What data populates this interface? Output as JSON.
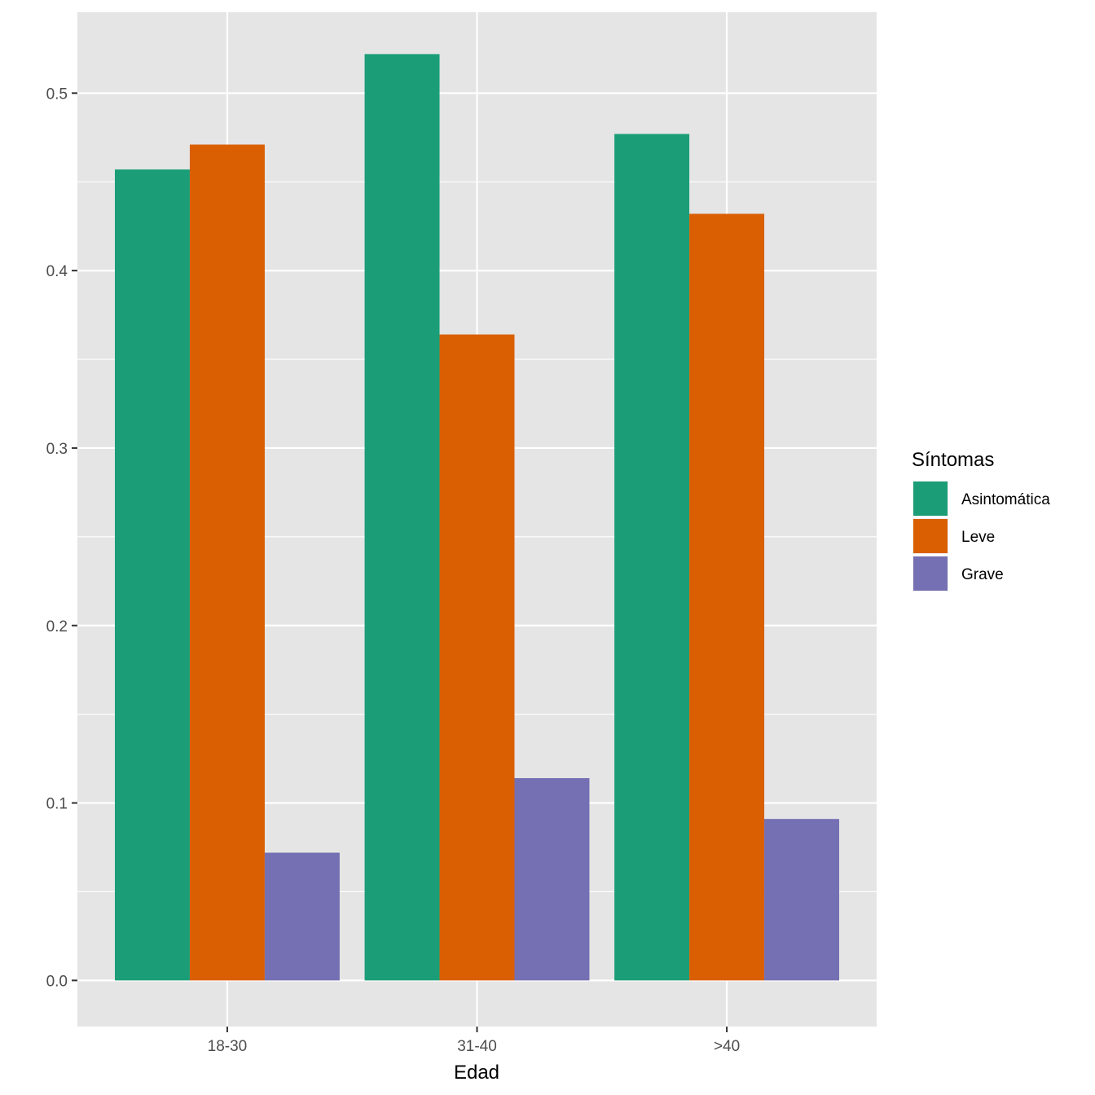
{
  "chart_data": {
    "type": "bar",
    "xlabel": "Edad",
    "ylabel": "",
    "categories": [
      "18-30",
      "31-40",
      ">40"
    ],
    "ylim": [
      -0.026,
      0.5456
    ],
    "yticks": [
      0.0,
      0.1,
      0.2,
      0.3,
      0.4,
      0.5
    ],
    "ytick_labels": [
      "0.0",
      "0.1",
      "0.2",
      "0.3",
      "0.4",
      "0.5"
    ],
    "grid": true,
    "legend_title": "Síntomas",
    "legend_position": "right",
    "series": [
      {
        "name": "Asintomática",
        "color": "#1B9E77",
        "values": [
          0.457,
          0.522,
          0.477
        ]
      },
      {
        "name": "Leve",
        "color": "#D95F02",
        "values": [
          0.471,
          0.364,
          0.432
        ]
      },
      {
        "name": "Grave",
        "color": "#7570B3",
        "values": [
          0.072,
          0.114,
          0.091
        ]
      }
    ],
    "panel_background": "#E5E5E5",
    "grid_color": "#FFFFFF"
  }
}
